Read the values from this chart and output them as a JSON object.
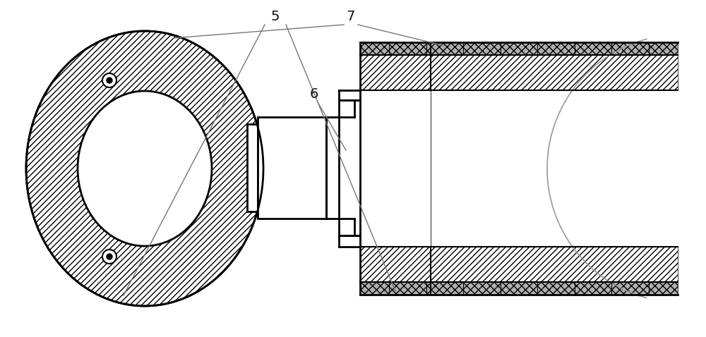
{
  "bg_color": "#ffffff",
  "line_color": "#000000",
  "label_7": "7",
  "label_6": "6",
  "label_5": "5",
  "label_color": "#111111",
  "figsize": [
    10.0,
    4.78
  ],
  "dpi": 100
}
